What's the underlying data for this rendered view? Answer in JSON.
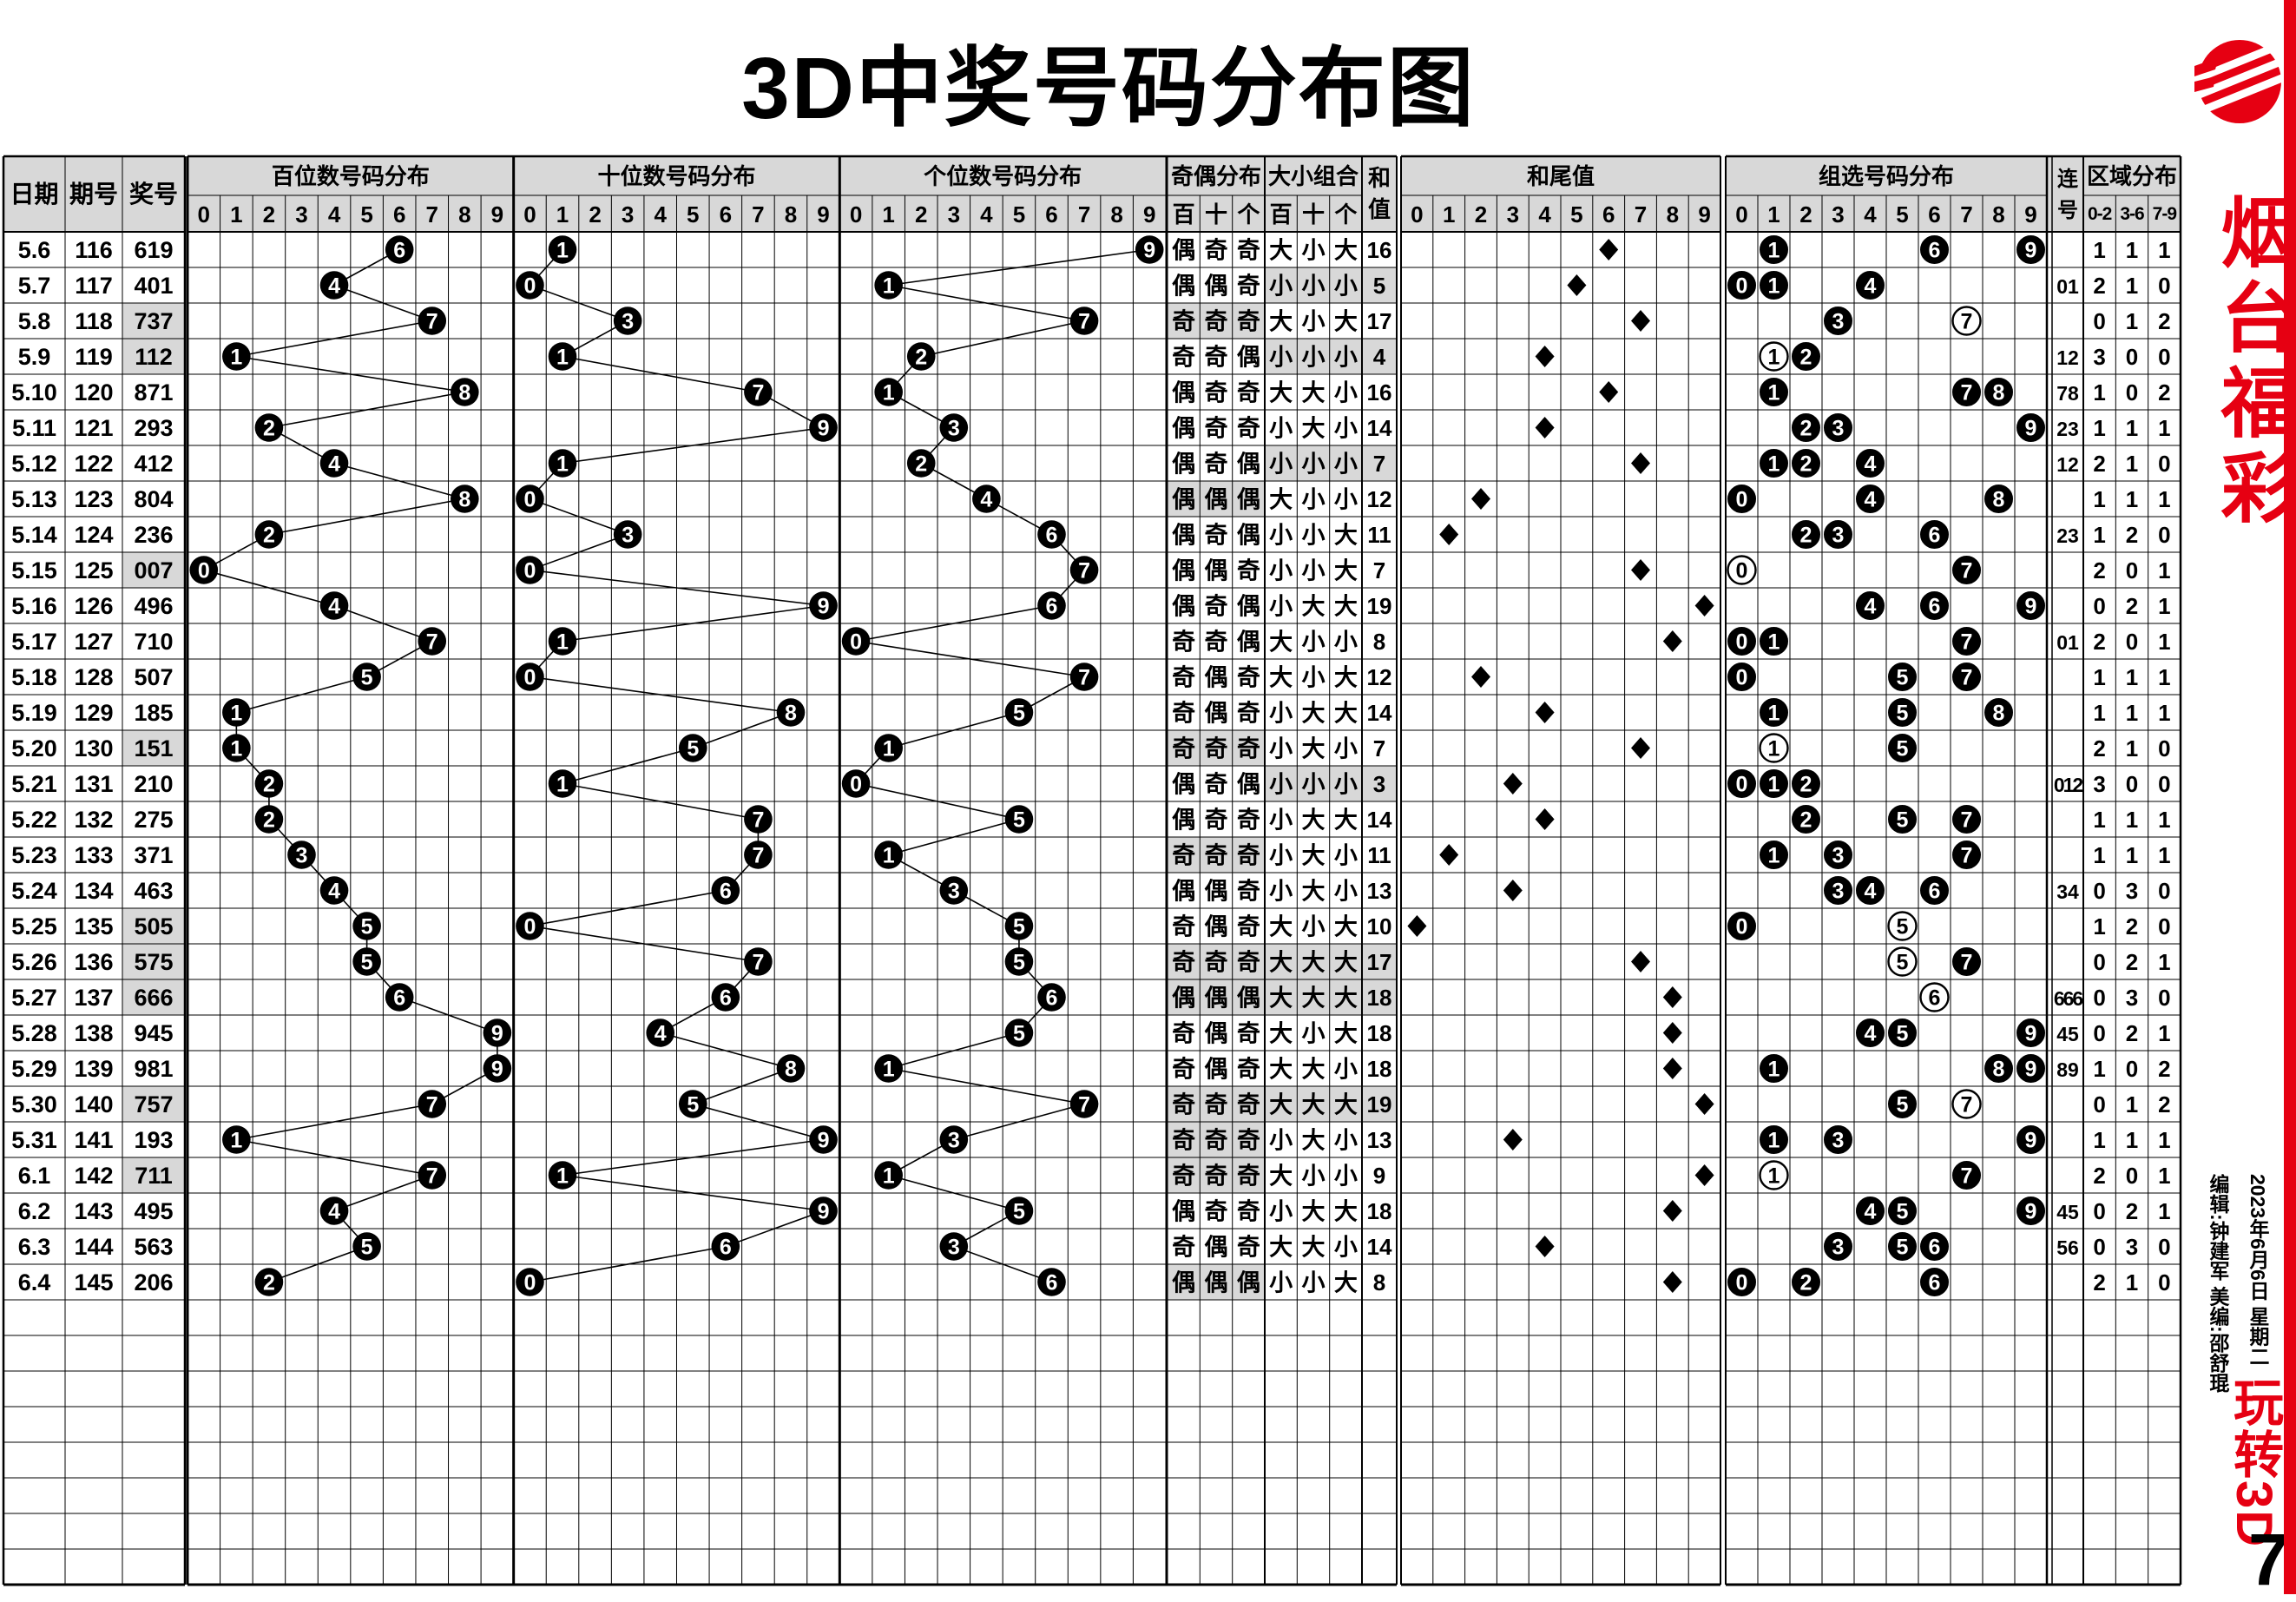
{
  "title": "3D中奖号码分布图",
  "sidebar": {
    "brand": "烟台福彩",
    "date_line": "2023年6月6日  星期二",
    "editor_line": "编辑:钟建军  美编:邵舒琨",
    "bottom_red": "玩转3D",
    "page_num": "7"
  },
  "chart_data": {
    "type": "table",
    "left_headers": [
      "日期",
      "期号",
      "奖号"
    ],
    "section_headers": {
      "hundreds": "百位数号码分布",
      "tens": "十位数号码分布",
      "units": "个位数号码分布",
      "odd_even": "奇偶分布",
      "big_small": "大小组合",
      "sum": "和值",
      "sum_tail": "和尾值",
      "group": "组选号码分布",
      "lianhao": "连号",
      "zone": "区域分布"
    },
    "digit_labels": [
      "0",
      "1",
      "2",
      "3",
      "4",
      "5",
      "6",
      "7",
      "8",
      "9"
    ],
    "pos_labels": [
      "百",
      "十",
      "个"
    ],
    "zone_labels": [
      "0-2",
      "3-6",
      "7-9"
    ],
    "colors": {
      "header_bg": "#d8d8d8",
      "shade": "#d8d8d8",
      "ink": "#000000",
      "red": "#e60012"
    },
    "empty_rows": 8,
    "rows": [
      {
        "date": "5.6",
        "issue": "116",
        "num": "619",
        "hot": false,
        "oe": "偶奇奇",
        "oe_all": false,
        "bs": "大小大",
        "bs_all": false,
        "sum": 16,
        "tail": 6,
        "group": [
          [
            1,
            0
          ],
          [
            6,
            0
          ],
          [
            9,
            0
          ]
        ],
        "lian": "",
        "zones": [
          1,
          1,
          1
        ]
      },
      {
        "date": "5.7",
        "issue": "117",
        "num": "401",
        "hot": false,
        "oe": "偶偶奇",
        "oe_all": false,
        "bs": "小小小",
        "bs_all": true,
        "sum": 5,
        "tail": 5,
        "group": [
          [
            0,
            0
          ],
          [
            1,
            0
          ],
          [
            4,
            0
          ]
        ],
        "lian": "01",
        "zones": [
          2,
          1,
          0
        ]
      },
      {
        "date": "5.8",
        "issue": "118",
        "num": "737",
        "hot": true,
        "oe": "奇奇奇",
        "oe_all": true,
        "bs": "大小大",
        "bs_all": false,
        "sum": 17,
        "tail": 7,
        "group": [
          [
            3,
            0
          ],
          [
            7,
            1
          ]
        ],
        "lian": "",
        "zones": [
          0,
          1,
          2
        ]
      },
      {
        "date": "5.9",
        "issue": "119",
        "num": "112",
        "hot": true,
        "oe": "奇奇偶",
        "oe_all": false,
        "bs": "小小小",
        "bs_all": true,
        "sum": 4,
        "tail": 4,
        "group": [
          [
            1,
            1
          ],
          [
            2,
            0
          ]
        ],
        "lian": "12",
        "zones": [
          3,
          0,
          0
        ]
      },
      {
        "date": "5.10",
        "issue": "120",
        "num": "871",
        "hot": false,
        "oe": "偶奇奇",
        "oe_all": false,
        "bs": "大大小",
        "bs_all": false,
        "sum": 16,
        "tail": 6,
        "group": [
          [
            1,
            0
          ],
          [
            7,
            0
          ],
          [
            8,
            0
          ]
        ],
        "lian": "78",
        "zones": [
          1,
          0,
          2
        ]
      },
      {
        "date": "5.11",
        "issue": "121",
        "num": "293",
        "hot": false,
        "oe": "偶奇奇",
        "oe_all": false,
        "bs": "小大小",
        "bs_all": false,
        "sum": 14,
        "tail": 4,
        "group": [
          [
            2,
            0
          ],
          [
            3,
            0
          ],
          [
            9,
            0
          ]
        ],
        "lian": "23",
        "zones": [
          1,
          1,
          1
        ]
      },
      {
        "date": "5.12",
        "issue": "122",
        "num": "412",
        "hot": false,
        "oe": "偶奇偶",
        "oe_all": false,
        "bs": "小小小",
        "bs_all": true,
        "sum": 7,
        "tail": 7,
        "group": [
          [
            1,
            0
          ],
          [
            2,
            0
          ],
          [
            4,
            0
          ]
        ],
        "lian": "12",
        "zones": [
          2,
          1,
          0
        ]
      },
      {
        "date": "5.13",
        "issue": "123",
        "num": "804",
        "hot": false,
        "oe": "偶偶偶",
        "oe_all": true,
        "bs": "大小小",
        "bs_all": false,
        "sum": 12,
        "tail": 2,
        "group": [
          [
            0,
            0
          ],
          [
            4,
            0
          ],
          [
            8,
            0
          ]
        ],
        "lian": "",
        "zones": [
          1,
          1,
          1
        ]
      },
      {
        "date": "5.14",
        "issue": "124",
        "num": "236",
        "hot": false,
        "oe": "偶奇偶",
        "oe_all": false,
        "bs": "小小大",
        "bs_all": false,
        "sum": 11,
        "tail": 1,
        "group": [
          [
            2,
            0
          ],
          [
            3,
            0
          ],
          [
            6,
            0
          ]
        ],
        "lian": "23",
        "zones": [
          1,
          2,
          0
        ]
      },
      {
        "date": "5.15",
        "issue": "125",
        "num": "007",
        "hot": true,
        "oe": "偶偶奇",
        "oe_all": false,
        "bs": "小小大",
        "bs_all": false,
        "sum": 7,
        "tail": 7,
        "group": [
          [
            0,
            1
          ],
          [
            7,
            0
          ]
        ],
        "lian": "",
        "zones": [
          2,
          0,
          1
        ]
      },
      {
        "date": "5.16",
        "issue": "126",
        "num": "496",
        "hot": false,
        "oe": "偶奇偶",
        "oe_all": false,
        "bs": "小大大",
        "bs_all": false,
        "sum": 19,
        "tail": 9,
        "group": [
          [
            4,
            0
          ],
          [
            6,
            0
          ],
          [
            9,
            0
          ]
        ],
        "lian": "",
        "zones": [
          0,
          2,
          1
        ]
      },
      {
        "date": "5.17",
        "issue": "127",
        "num": "710",
        "hot": false,
        "oe": "奇奇偶",
        "oe_all": false,
        "bs": "大小小",
        "bs_all": false,
        "sum": 8,
        "tail": 8,
        "group": [
          [
            0,
            0
          ],
          [
            1,
            0
          ],
          [
            7,
            0
          ]
        ],
        "lian": "01",
        "zones": [
          2,
          0,
          1
        ]
      },
      {
        "date": "5.18",
        "issue": "128",
        "num": "507",
        "hot": false,
        "oe": "奇偶奇",
        "oe_all": false,
        "bs": "大小大",
        "bs_all": false,
        "sum": 12,
        "tail": 2,
        "group": [
          [
            0,
            0
          ],
          [
            5,
            0
          ],
          [
            7,
            0
          ]
        ],
        "lian": "",
        "zones": [
          1,
          1,
          1
        ]
      },
      {
        "date": "5.19",
        "issue": "129",
        "num": "185",
        "hot": false,
        "oe": "奇偶奇",
        "oe_all": false,
        "bs": "小大大",
        "bs_all": false,
        "sum": 14,
        "tail": 4,
        "group": [
          [
            1,
            0
          ],
          [
            5,
            0
          ],
          [
            8,
            0
          ]
        ],
        "lian": "",
        "zones": [
          1,
          1,
          1
        ]
      },
      {
        "date": "5.20",
        "issue": "130",
        "num": "151",
        "hot": true,
        "oe": "奇奇奇",
        "oe_all": true,
        "bs": "小大小",
        "bs_all": false,
        "sum": 7,
        "tail": 7,
        "group": [
          [
            1,
            1
          ],
          [
            5,
            0
          ]
        ],
        "lian": "",
        "zones": [
          2,
          1,
          0
        ]
      },
      {
        "date": "5.21",
        "issue": "131",
        "num": "210",
        "hot": false,
        "oe": "偶奇偶",
        "oe_all": false,
        "bs": "小小小",
        "bs_all": true,
        "sum": 3,
        "tail": 3,
        "group": [
          [
            0,
            0
          ],
          [
            1,
            0
          ],
          [
            2,
            0
          ]
        ],
        "lian": "012",
        "zones": [
          3,
          0,
          0
        ]
      },
      {
        "date": "5.22",
        "issue": "132",
        "num": "275",
        "hot": false,
        "oe": "偶奇奇",
        "oe_all": false,
        "bs": "小大大",
        "bs_all": false,
        "sum": 14,
        "tail": 4,
        "group": [
          [
            2,
            0
          ],
          [
            5,
            0
          ],
          [
            7,
            0
          ]
        ],
        "lian": "",
        "zones": [
          1,
          1,
          1
        ]
      },
      {
        "date": "5.23",
        "issue": "133",
        "num": "371",
        "hot": false,
        "oe": "奇奇奇",
        "oe_all": true,
        "bs": "小大小",
        "bs_all": false,
        "sum": 11,
        "tail": 1,
        "group": [
          [
            1,
            0
          ],
          [
            3,
            0
          ],
          [
            7,
            0
          ]
        ],
        "lian": "",
        "zones": [
          1,
          1,
          1
        ]
      },
      {
        "date": "5.24",
        "issue": "134",
        "num": "463",
        "hot": false,
        "oe": "偶偶奇",
        "oe_all": false,
        "bs": "小大小",
        "bs_all": false,
        "sum": 13,
        "tail": 3,
        "group": [
          [
            3,
            0
          ],
          [
            4,
            0
          ],
          [
            6,
            0
          ]
        ],
        "lian": "34",
        "zones": [
          0,
          3,
          0
        ]
      },
      {
        "date": "5.25",
        "issue": "135",
        "num": "505",
        "hot": true,
        "oe": "奇偶奇",
        "oe_all": false,
        "bs": "大小大",
        "bs_all": false,
        "sum": 10,
        "tail": 0,
        "group": [
          [
            0,
            0
          ],
          [
            5,
            1
          ]
        ],
        "lian": "",
        "zones": [
          1,
          2,
          0
        ]
      },
      {
        "date": "5.26",
        "issue": "136",
        "num": "575",
        "hot": true,
        "oe": "奇奇奇",
        "oe_all": true,
        "bs": "大大大",
        "bs_all": true,
        "sum": 17,
        "tail": 7,
        "group": [
          [
            5,
            1
          ],
          [
            7,
            0
          ]
        ],
        "lian": "",
        "zones": [
          0,
          2,
          1
        ]
      },
      {
        "date": "5.27",
        "issue": "137",
        "num": "666",
        "hot": true,
        "oe": "偶偶偶",
        "oe_all": true,
        "bs": "大大大",
        "bs_all": true,
        "sum": 18,
        "tail": 8,
        "group": [
          [
            6,
            1
          ]
        ],
        "lian": "666",
        "zones": [
          0,
          3,
          0
        ]
      },
      {
        "date": "5.28",
        "issue": "138",
        "num": "945",
        "hot": false,
        "oe": "奇偶奇",
        "oe_all": false,
        "bs": "大小大",
        "bs_all": false,
        "sum": 18,
        "tail": 8,
        "group": [
          [
            4,
            0
          ],
          [
            5,
            0
          ],
          [
            9,
            0
          ]
        ],
        "lian": "45",
        "zones": [
          0,
          2,
          1
        ]
      },
      {
        "date": "5.29",
        "issue": "139",
        "num": "981",
        "hot": false,
        "oe": "奇偶奇",
        "oe_all": false,
        "bs": "大大小",
        "bs_all": false,
        "sum": 18,
        "tail": 8,
        "group": [
          [
            1,
            0
          ],
          [
            8,
            0
          ],
          [
            9,
            0
          ]
        ],
        "lian": "89",
        "zones": [
          1,
          0,
          2
        ]
      },
      {
        "date": "5.30",
        "issue": "140",
        "num": "757",
        "hot": true,
        "oe": "奇奇奇",
        "oe_all": true,
        "bs": "大大大",
        "bs_all": true,
        "sum": 19,
        "tail": 9,
        "group": [
          [
            5,
            0
          ],
          [
            7,
            1
          ]
        ],
        "lian": "",
        "zones": [
          0,
          1,
          2
        ]
      },
      {
        "date": "5.31",
        "issue": "141",
        "num": "193",
        "hot": false,
        "oe": "奇奇奇",
        "oe_all": true,
        "bs": "小大小",
        "bs_all": false,
        "sum": 13,
        "tail": 3,
        "group": [
          [
            1,
            0
          ],
          [
            3,
            0
          ],
          [
            9,
            0
          ]
        ],
        "lian": "",
        "zones": [
          1,
          1,
          1
        ]
      },
      {
        "date": "6.1",
        "issue": "142",
        "num": "711",
        "hot": true,
        "oe": "奇奇奇",
        "oe_all": true,
        "bs": "大小小",
        "bs_all": false,
        "sum": 9,
        "tail": 9,
        "group": [
          [
            1,
            1
          ],
          [
            7,
            0
          ]
        ],
        "lian": "",
        "zones": [
          2,
          0,
          1
        ]
      },
      {
        "date": "6.2",
        "issue": "143",
        "num": "495",
        "hot": false,
        "oe": "偶奇奇",
        "oe_all": false,
        "bs": "小大大",
        "bs_all": false,
        "sum": 18,
        "tail": 8,
        "group": [
          [
            4,
            0
          ],
          [
            5,
            0
          ],
          [
            9,
            0
          ]
        ],
        "lian": "45",
        "zones": [
          0,
          2,
          1
        ]
      },
      {
        "date": "6.3",
        "issue": "144",
        "num": "563",
        "hot": false,
        "oe": "奇偶奇",
        "oe_all": false,
        "bs": "大大小",
        "bs_all": false,
        "sum": 14,
        "tail": 4,
        "group": [
          [
            3,
            0
          ],
          [
            5,
            0
          ],
          [
            6,
            0
          ]
        ],
        "lian": "56",
        "zones": [
          0,
          3,
          0
        ]
      },
      {
        "date": "6.4",
        "issue": "145",
        "num": "206",
        "hot": false,
        "oe": "偶偶偶",
        "oe_all": true,
        "bs": "小小大",
        "bs_all": false,
        "sum": 8,
        "tail": 8,
        "group": [
          [
            0,
            0
          ],
          [
            2,
            0
          ],
          [
            6,
            0
          ]
        ],
        "lian": "",
        "zones": [
          2,
          1,
          0
        ]
      }
    ]
  }
}
